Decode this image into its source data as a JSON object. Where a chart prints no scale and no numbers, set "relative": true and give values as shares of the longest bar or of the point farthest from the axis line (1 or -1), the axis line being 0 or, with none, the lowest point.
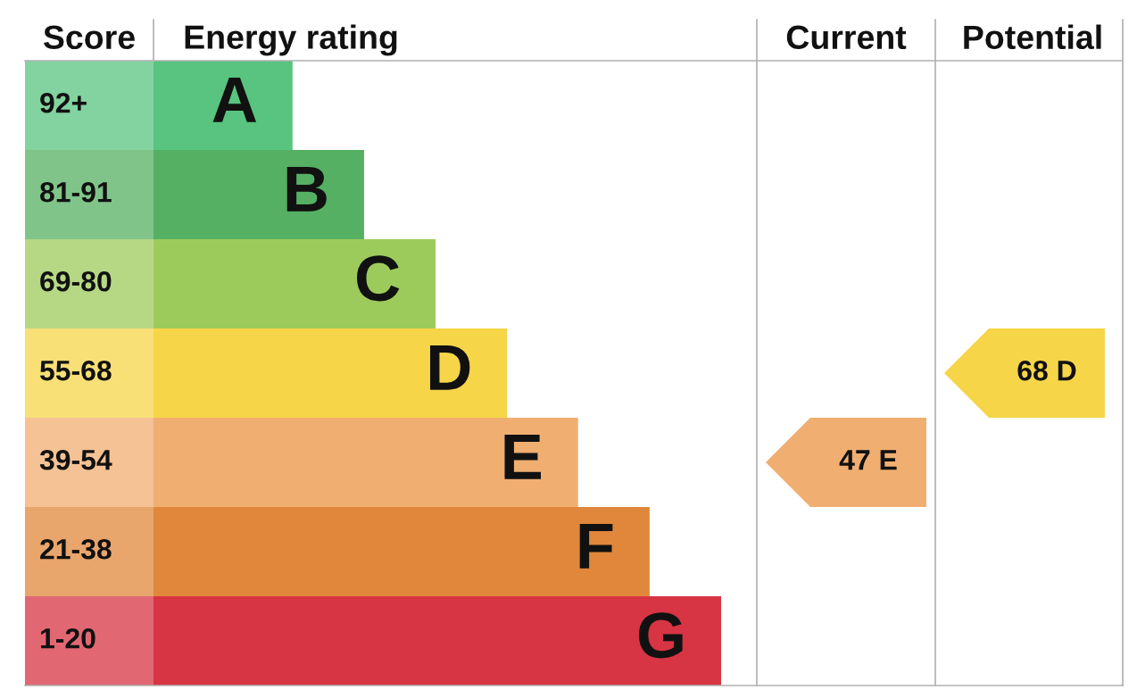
{
  "chart_data": {
    "type": "bar",
    "orientation": "horizontal",
    "relative": true,
    "categories": [
      "A",
      "B",
      "C",
      "D",
      "E",
      "F",
      "G"
    ],
    "y2_categories": [
      "92+",
      "81-91",
      "69-80",
      "55-68",
      "39-54",
      "21-38",
      "1-20"
    ],
    "values": [
      0.245,
      0.371,
      0.497,
      0.623,
      0.748,
      0.874,
      1.0
    ],
    "colors": [
      "#58c47f",
      "#55b063",
      "#9dcb5b",
      "#f6d548",
      "#f0ae71",
      "#e0873b",
      "#d73444"
    ],
    "annotations": [
      "Score",
      "Energy rating",
      "Current",
      "Potential",
      "47 E",
      "68 D"
    ],
    "legend": false
  }
}
